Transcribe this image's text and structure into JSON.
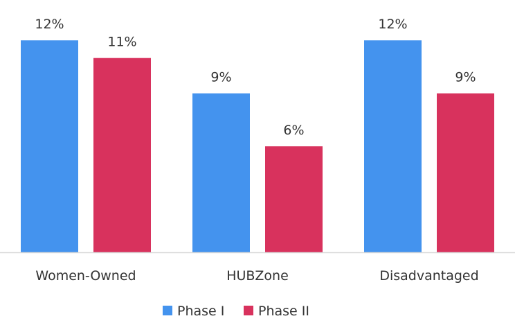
{
  "chart_data": {
    "type": "bar",
    "categories": [
      "Women-Owned",
      "HUBZone",
      "Disadvantaged"
    ],
    "series": [
      {
        "name": "Phase I",
        "values": [
          12,
          9,
          12
        ],
        "labels": [
          "12%",
          "9%",
          "12%"
        ],
        "color": "#4493ee"
      },
      {
        "name": "Phase II",
        "values": [
          11,
          6,
          9
        ],
        "labels": [
          "11%",
          "6%",
          "9%"
        ],
        "color": "#d8325d"
      }
    ],
    "unit": "%",
    "ylim": [
      0,
      13.5
    ],
    "grid": false,
    "legend": "bottom-center",
    "title": "",
    "xlabel": "",
    "ylabel": ""
  }
}
